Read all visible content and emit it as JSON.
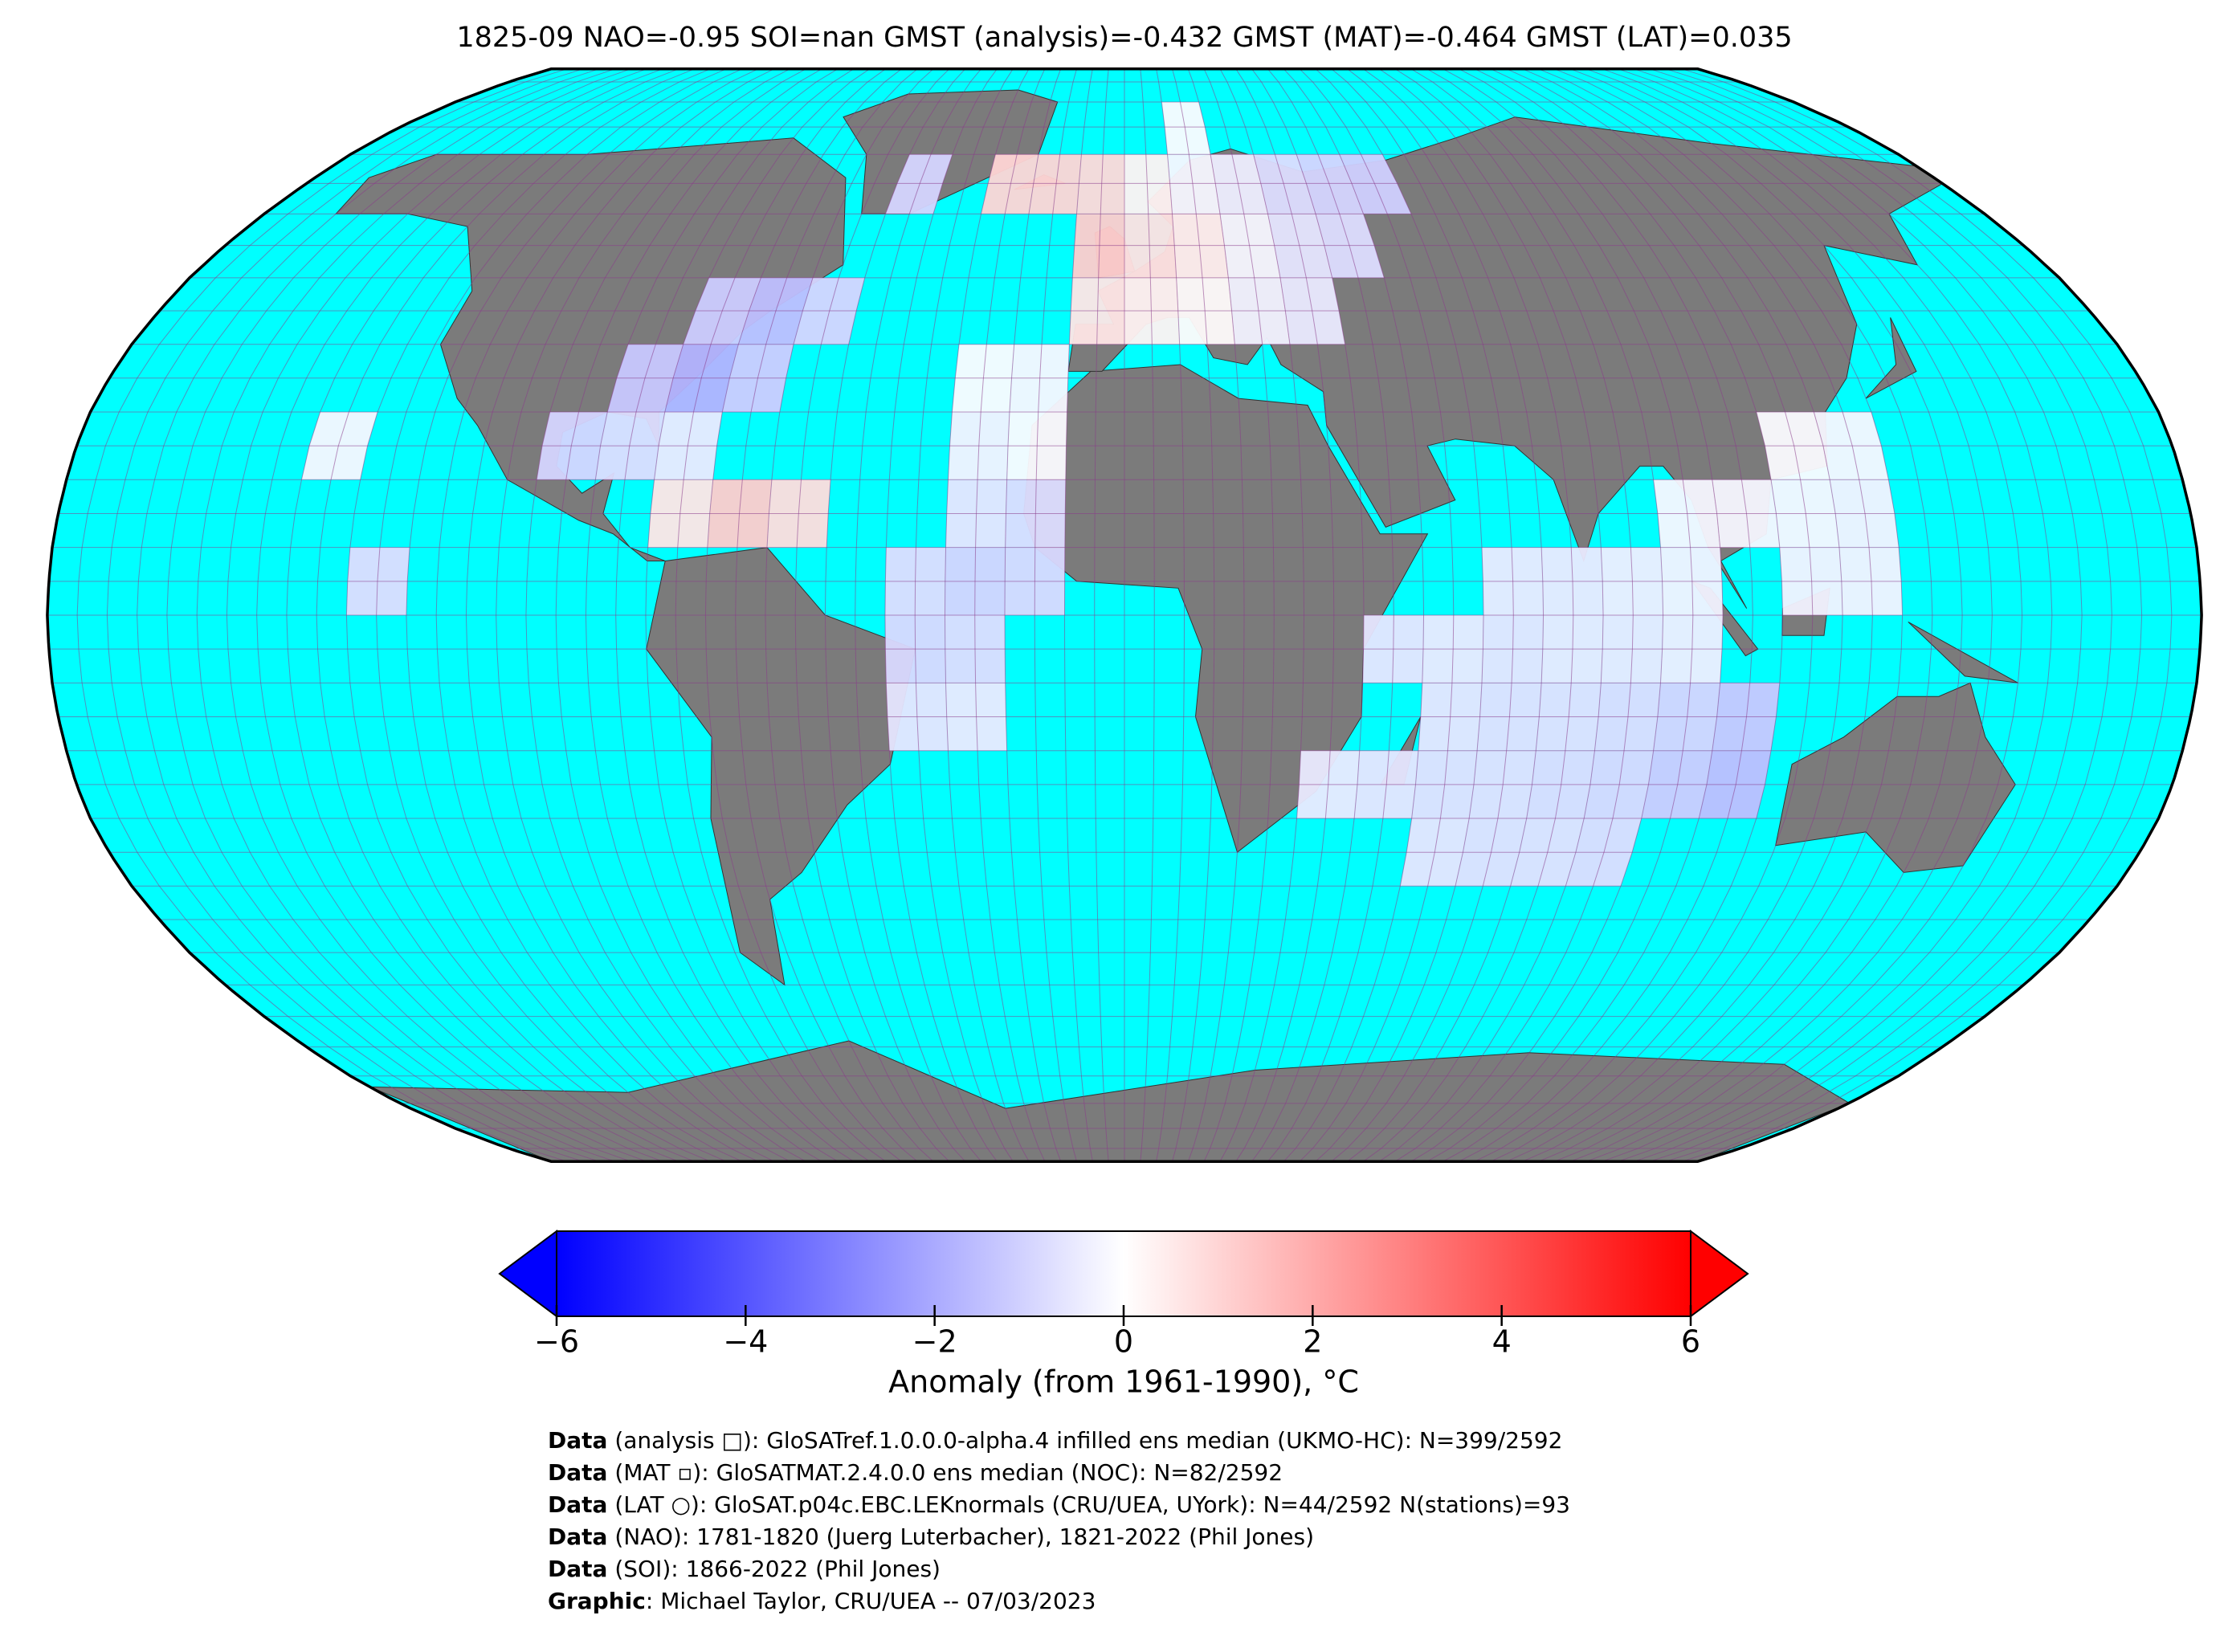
{
  "chart_data": {
    "type": "gridded-map",
    "title": "1825-09 NAO=-0.95 SOI=nan GMST (analysis)=-0.432 GMST (MAT)=-0.464 GMST (LAT)=0.035",
    "projection": "robinson",
    "colormap": "bwr",
    "cells": [
      [
        -30,
        60,
        1.0
      ],
      [
        -20,
        60,
        1.0
      ],
      [
        -10,
        60,
        0.9
      ],
      [
        0,
        60,
        0.3
      ],
      [
        10,
        60,
        -0.2
      ],
      [
        20,
        60,
        -0.4
      ],
      [
        30,
        60,
        -0.8
      ],
      [
        40,
        60,
        -1.0
      ],
      [
        50,
        60,
        -1.1
      ],
      [
        10,
        70,
        -0.1
      ],
      [
        -50,
        60,
        -1.0
      ],
      [
        -10,
        50,
        1.2
      ],
      [
        0,
        50,
        0.7
      ],
      [
        10,
        50,
        0.4
      ],
      [
        20,
        50,
        -0.2
      ],
      [
        30,
        50,
        -0.6
      ],
      [
        40,
        50,
        -0.8
      ],
      [
        -10,
        40,
        0.6
      ],
      [
        0,
        40,
        0.3
      ],
      [
        10,
        40,
        0.1
      ],
      [
        20,
        40,
        -0.3
      ],
      [
        30,
        40,
        -0.5
      ],
      [
        -80,
        40,
        -1.2
      ],
      [
        -70,
        40,
        -1.5
      ],
      [
        -60,
        40,
        -1.0
      ],
      [
        -90,
        30,
        -1.3
      ],
      [
        -80,
        30,
        -1.8
      ],
      [
        -70,
        30,
        -1.2
      ],
      [
        -100,
        20,
        -1.0
      ],
      [
        -90,
        20,
        -0.8
      ],
      [
        -80,
        20,
        -0.5
      ],
      [
        -80,
        10,
        0.6
      ],
      [
        -70,
        10,
        1.2
      ],
      [
        -60,
        10,
        0.8
      ],
      [
        -30,
        30,
        -0.1
      ],
      [
        -20,
        30,
        -0.2
      ],
      [
        -30,
        20,
        -0.3
      ],
      [
        -20,
        20,
        -0.1
      ],
      [
        -30,
        10,
        -0.6
      ],
      [
        -20,
        10,
        -0.8
      ],
      [
        -40,
        0,
        -0.8
      ],
      [
        -30,
        0,
        -1.0
      ],
      [
        -20,
        0,
        -0.9
      ],
      [
        -40,
        -10,
        -0.9
      ],
      [
        -30,
        -10,
        -0.8
      ],
      [
        -40,
        -20,
        -0.6
      ],
      [
        -30,
        -20,
        -0.5
      ],
      [
        -140,
        20,
        -0.2
      ],
      [
        -130,
        0,
        -0.8
      ],
      [
        60,
        0,
        -0.5
      ],
      [
        70,
        0,
        -0.5
      ],
      [
        80,
        0,
        -0.4
      ],
      [
        90,
        0,
        -0.3
      ],
      [
        40,
        -10,
        -0.6
      ],
      [
        50,
        -10,
        -0.5
      ],
      [
        60,
        -10,
        -0.6
      ],
      [
        70,
        -10,
        -0.5
      ],
      [
        80,
        -10,
        -0.5
      ],
      [
        90,
        -10,
        -0.4
      ],
      [
        50,
        -20,
        -0.6
      ],
      [
        60,
        -20,
        -0.7
      ],
      [
        70,
        -20,
        -0.7
      ],
      [
        80,
        -20,
        -0.8
      ],
      [
        90,
        -20,
        -1.0
      ],
      [
        100,
        -20,
        -1.3
      ],
      [
        30,
        -30,
        -0.5
      ],
      [
        40,
        -30,
        -0.6
      ],
      [
        50,
        -30,
        -0.7
      ],
      [
        60,
        -30,
        -0.7
      ],
      [
        70,
        -30,
        -0.8
      ],
      [
        80,
        -30,
        -0.9
      ],
      [
        90,
        -30,
        -1.2
      ],
      [
        100,
        -30,
        -1.5
      ],
      [
        50,
        -40,
        -0.6
      ],
      [
        60,
        -40,
        -0.7
      ],
      [
        70,
        -40,
        -0.7
      ],
      [
        80,
        -40,
        -0.8
      ],
      [
        90,
        10,
        -0.2
      ],
      [
        100,
        10,
        -0.2
      ],
      [
        110,
        10,
        -0.2
      ],
      [
        120,
        10,
        -0.3
      ],
      [
        110,
        0,
        -0.3
      ],
      [
        120,
        0,
        -0.3
      ],
      [
        110,
        20,
        -0.1
      ],
      [
        120,
        20,
        -0.2
      ]
    ],
    "colorbar": {
      "lim": [
        -6,
        6
      ],
      "ticks": [
        {
          "value": -6,
          "label": "−6"
        },
        {
          "value": -4,
          "label": "−4"
        },
        {
          "value": -2,
          "label": "−2"
        },
        0,
        2,
        4,
        6
      ],
      "label": "Anomaly (from 1961-1990), °C"
    },
    "notes": [
      {
        "prefix": "Data",
        "text": " (analysis □): GloSATref.1.0.0.0-alpha.4 infilled ens median (UKMO-HC): N=399/2592"
      },
      {
        "prefix": "Data",
        "text": " (MAT ▫): GloSATMAT.2.4.0.0 ens median (NOC): N=82/2592"
      },
      {
        "prefix": "Data",
        "text": " (LAT ○): GloSAT.p04c.EBC.LEKnormals (CRU/UEA, UYork): N=44/2592 N(stations)=93"
      },
      {
        "prefix": "Data",
        "text": " (NAO): 1781-1820 (Juerg Luterbacher), 1821-2022 (Phil Jones)"
      },
      {
        "prefix": "Data",
        "text": " (SOI): 1866-2022 (Phil Jones)"
      },
      {
        "prefix": "Graphic",
        "text": ": Michael Taylor, CRU/UEA -- 07/03/2023"
      }
    ]
  }
}
